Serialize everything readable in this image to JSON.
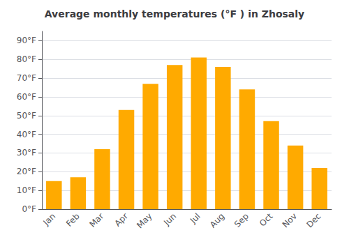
{
  "chart_data": {
    "type": "bar",
    "title": "Average monthly temperatures (°F ) in Zhosaly",
    "categories": [
      "Jan",
      "Feb",
      "Mar",
      "Apr",
      "May",
      "Jun",
      "Jul",
      "Aug",
      "Sep",
      "Oct",
      "Nov",
      "Dec"
    ],
    "values": [
      15,
      17,
      32,
      53,
      67,
      77,
      81,
      76,
      64,
      47,
      34,
      22
    ],
    "color": "#FFAA00",
    "ylim": [
      0,
      95
    ],
    "yticks": [
      {
        "value": 0,
        "label": "0°F"
      },
      {
        "value": 10,
        "label": "10°F"
      },
      {
        "value": 20,
        "label": "20°F"
      },
      {
        "value": 30,
        "label": "30°F"
      },
      {
        "value": 40,
        "label": "40°F"
      },
      {
        "value": 50,
        "label": "50°F"
      },
      {
        "value": 60,
        "label": "60°F"
      },
      {
        "value": 70,
        "label": "70°F"
      },
      {
        "value": 80,
        "label": "80°F"
      },
      {
        "value": 90,
        "label": "90°F"
      }
    ],
    "grid": true
  }
}
